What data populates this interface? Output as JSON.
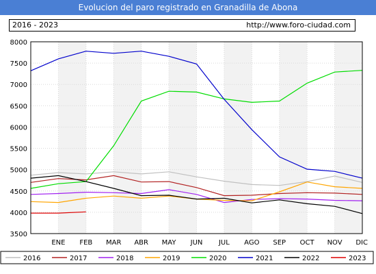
{
  "header": {
    "title": "Evolucion del paro registrado en Granadilla de Abona",
    "period": "2016 - 2023",
    "url": "http://www.foro-ciudad.com"
  },
  "chart_data": {
    "type": "line",
    "title": "Evolucion del paro registrado en Granadilla de Abona",
    "xlabel": "",
    "ylabel": "",
    "ylim": [
      3500,
      8000
    ],
    "yticks": [
      3500,
      4000,
      4500,
      5000,
      5500,
      6000,
      6500,
      7000,
      7500,
      8000
    ],
    "x": [
      "",
      "ENE",
      "FEB",
      "MAR",
      "ABR",
      "MAY",
      "JUN",
      "JUL",
      "AGO",
      "SEP",
      "OCT",
      "NOV",
      "DIC"
    ],
    "grid": true,
    "legend_position": "bottom",
    "series": [
      {
        "name": "2016",
        "color": "#c0c0c0",
        "values": [
          4870,
          4930,
          4900,
          4950,
          4900,
          4950,
          4830,
          4730,
          4650,
          4630,
          4720,
          4850,
          4700
        ]
      },
      {
        "name": "2017",
        "color": "#b22222",
        "values": [
          4700,
          4790,
          4760,
          4860,
          4710,
          4720,
          4580,
          4390,
          4400,
          4440,
          4460,
          4450,
          4420
        ]
      },
      {
        "name": "2018",
        "color": "#a020f0",
        "values": [
          4420,
          4440,
          4470,
          4460,
          4440,
          4530,
          4420,
          4230,
          4300,
          4320,
          4310,
          4280,
          4270
        ]
      },
      {
        "name": "2019",
        "color": "#ffa500",
        "values": [
          4250,
          4230,
          4330,
          4380,
          4330,
          4380,
          4310,
          4280,
          4270,
          4480,
          4710,
          4600,
          4560
        ]
      },
      {
        "name": "2020",
        "color": "#00dd00",
        "values": [
          4560,
          4670,
          4720,
          5560,
          6610,
          6840,
          6820,
          6660,
          6580,
          6610,
          7030,
          7290,
          7330
        ]
      },
      {
        "name": "2021",
        "color": "#0000cc",
        "values": [
          7320,
          7600,
          7780,
          7730,
          7780,
          7660,
          7480,
          6650,
          5940,
          5300,
          5010,
          4960,
          4800
        ]
      },
      {
        "name": "2022",
        "color": "#000000",
        "values": [
          4800,
          4860,
          4720,
          4560,
          4390,
          4400,
          4310,
          4330,
          4220,
          4290,
          4200,
          4140,
          3970
        ]
      },
      {
        "name": "2023",
        "color": "#dd0000",
        "values": [
          3980,
          3980,
          4010,
          null,
          null,
          null,
          null,
          null,
          null,
          null,
          null,
          null,
          null
        ]
      }
    ]
  }
}
